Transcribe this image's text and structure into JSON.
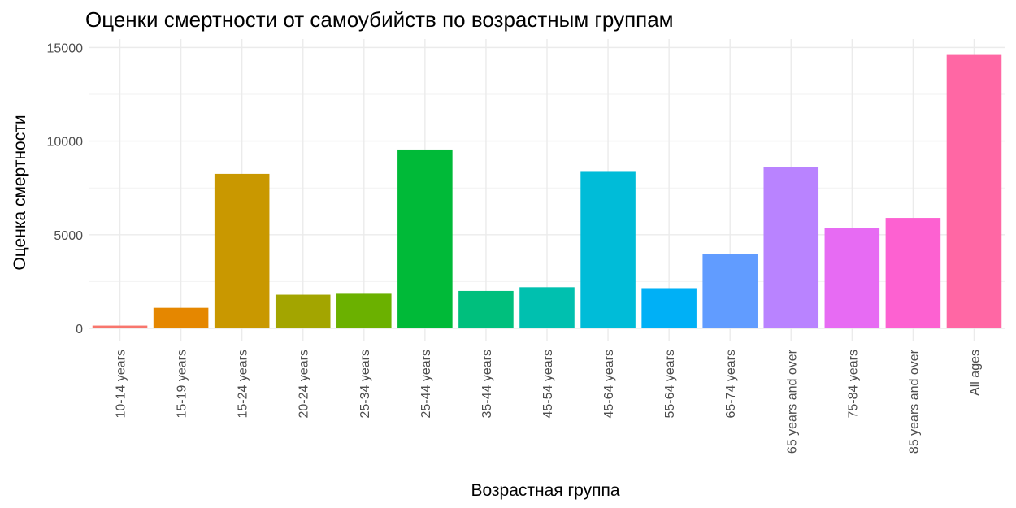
{
  "chart_data": {
    "type": "bar",
    "title": "Оценки смертности от самоубийств по возрастным группам",
    "xlabel": "Возрастная группа",
    "ylabel": "Оценка смертности",
    "categories": [
      "10-14 years",
      "15-19 years",
      "15-24 years",
      "20-24 years",
      "25-34 years",
      "25-44 years",
      "35-44 years",
      "45-54 years",
      "45-64 years",
      "55-64 years",
      "65-74 years",
      "65 years and over",
      "75-84 years",
      "85 years and over",
      "All ages"
    ],
    "values": [
      150,
      1100,
      8250,
      1800,
      1850,
      9550,
      2000,
      2200,
      8400,
      2150,
      3950,
      8600,
      5350,
      5900,
      14600
    ],
    "colors": [
      "#F8766D",
      "#E58700",
      "#C99800",
      "#A3A500",
      "#6BB100",
      "#00BA38",
      "#00BF7D",
      "#00C0AF",
      "#00BCD8",
      "#00B0F6",
      "#619CFF",
      "#B983FF",
      "#E76BF3",
      "#FD61D1",
      "#FF67A4"
    ],
    "ylim": [
      -650,
      15450
    ],
    "yticks": [
      {
        "value": 0,
        "label": "0"
      },
      {
        "value": 5000,
        "label": "5000"
      },
      {
        "value": 10000,
        "label": "10000"
      },
      {
        "value": 15000,
        "label": "15000"
      }
    ],
    "grid": true,
    "legend": "none"
  }
}
